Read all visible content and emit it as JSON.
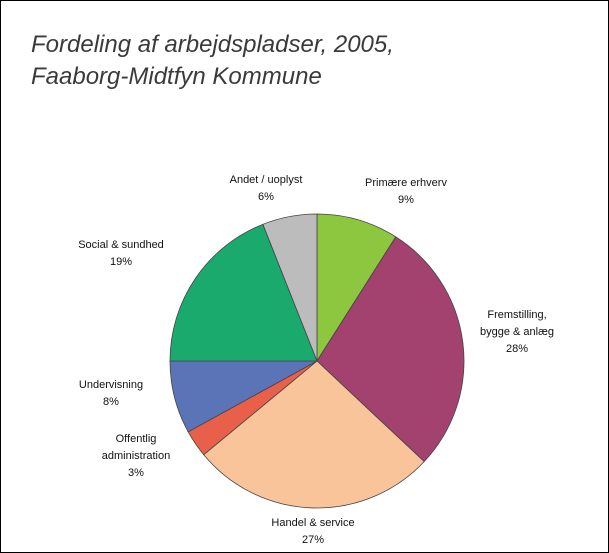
{
  "chart_data": {
    "type": "pie",
    "title": "Fordeling af arbejdspladser, 2005,",
    "subtitle": "Faaborg-Midtfyn Kommune",
    "categories": [
      "Primære erhverv",
      "Fremstilling, bygge & anlæg",
      "Handel & service",
      "Offentlig administration",
      "Undervisning",
      "Social & sundhed",
      "Andet / uoplyst"
    ],
    "values": [
      9,
      28,
      27,
      3,
      8,
      19,
      6
    ],
    "value_labels": [
      "9%",
      "28%",
      "27%",
      "3%",
      "8%",
      "19%",
      "6%"
    ],
    "colors": [
      "#8dc63f",
      "#a3426e",
      "#f9c49a",
      "#e8604a",
      "#5b74b8",
      "#1aaa6e",
      "#bcbcbd"
    ]
  }
}
